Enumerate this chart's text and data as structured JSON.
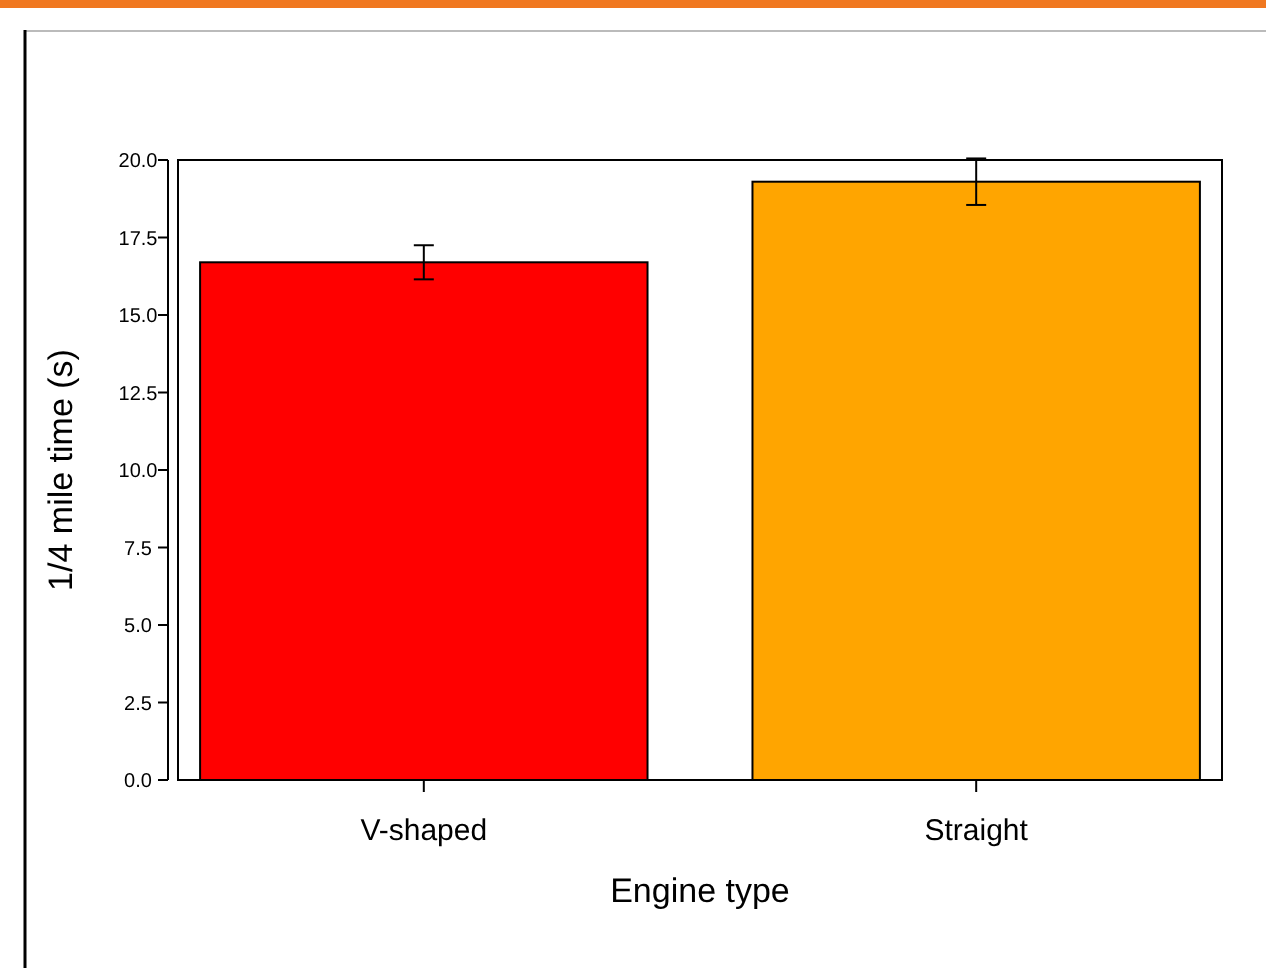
{
  "chart_data": {
    "type": "bar",
    "xlabel": "Engine type",
    "ylabel": "1/4 mile time (s)",
    "categories": [
      "V-shaped",
      "Straight"
    ],
    "values": [
      16.7,
      19.3
    ],
    "errors": [
      0.55,
      0.75
    ],
    "colors": [
      "#ff0000",
      "#ffa500"
    ],
    "ylim": [
      0,
      20
    ],
    "yticks": [
      {
        "value": 0,
        "label": "0.0"
      },
      {
        "value": 2.5,
        "label": "2.5"
      },
      {
        "value": 5,
        "label": "5.0"
      },
      {
        "value": 7.5,
        "label": "7.5"
      },
      {
        "value": 10,
        "label": "10.0"
      },
      {
        "value": 12.5,
        "label": "12.5"
      },
      {
        "value": 15,
        "label": "15.0"
      },
      {
        "value": 17.5,
        "label": "17.5"
      },
      {
        "value": 20,
        "label": "20.0"
      }
    ],
    "grid": false
  }
}
